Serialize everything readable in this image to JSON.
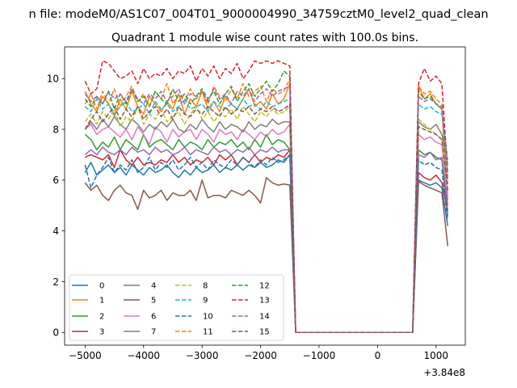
{
  "figure": {
    "suptitle": "n file: modeM0/AS1C07_004T01_9000004990_34759cztM0_level2_quad_clean",
    "offset_label": "+3.84e8"
  },
  "chart_data": {
    "type": "line",
    "title": "Quadrant 1 module wise count rates with 100.0s bins.",
    "xlabel": "",
    "ylabel": "",
    "xlim": [
      -5350,
      1500
    ],
    "ylim": [
      -0.5,
      11.25
    ],
    "x_offset": 384000000,
    "xticks": [
      -5000,
      -4000,
      -3000,
      -2000,
      -1000,
      0,
      1000
    ],
    "xtick_labels": [
      "−5000",
      "−4000",
      "−3000",
      "−2000",
      "−1000",
      "0",
      "1000"
    ],
    "yticks": [
      0,
      2,
      4,
      6,
      8,
      10
    ],
    "ytick_labels": [
      "0",
      "2",
      "4",
      "6",
      "8",
      "10"
    ],
    "grid": false,
    "legend_position": "lower-left",
    "legend_columns": 4,
    "x": [
      -5000,
      -4900,
      -4800,
      -4700,
      -4600,
      -4500,
      -4400,
      -4300,
      -4200,
      -4100,
      -4000,
      -3900,
      -3800,
      -3700,
      -3600,
      -3500,
      -3400,
      -3300,
      -3200,
      -3100,
      -3000,
      -2900,
      -2800,
      -2700,
      -2600,
      -2500,
      -2400,
      -2300,
      -2200,
      -2100,
      -2000,
      -1900,
      -1800,
      -1700,
      -1600,
      -1500,
      -1400,
      600,
      700,
      800,
      900,
      1000,
      1100,
      1200
    ],
    "series": [
      {
        "name": "0",
        "color": "#1f77b4",
        "dash": "solid",
        "values": [
          6.3,
          6.7,
          6.2,
          6.4,
          6.6,
          6.3,
          6.5,
          6.2,
          6.6,
          6.4,
          6.2,
          6.5,
          6.3,
          6.4,
          6.6,
          6.3,
          6.1,
          6.4,
          6.2,
          6.5,
          6.3,
          6.4,
          6.6,
          6.3,
          6.5,
          6.4,
          6.6,
          6.4,
          6.6,
          6.5,
          6.7,
          6.5,
          6.6,
          6.8,
          6.7,
          7.0,
          0.0,
          0.0,
          6.0,
          5.9,
          5.8,
          5.9,
          5.7,
          4.2
        ]
      },
      {
        "name": "1",
        "color": "#ff7f0e",
        "dash": "solid",
        "values": [
          9.5,
          9.0,
          8.7,
          9.3,
          9.0,
          8.5,
          9.2,
          8.8,
          9.5,
          8.9,
          8.6,
          9.3,
          9.0,
          8.7,
          9.1,
          8.8,
          9.4,
          8.6,
          9.2,
          8.9,
          9.5,
          8.8,
          9.1,
          8.7,
          9.3,
          9.0,
          8.8,
          9.2,
          9.6,
          8.9,
          9.1,
          8.8,
          9.4,
          9.0,
          9.2,
          9.8,
          0.0,
          0.0,
          9.7,
          9.2,
          9.4,
          9.0,
          8.8,
          5.2
        ]
      },
      {
        "name": "2",
        "color": "#2ca02c",
        "dash": "solid",
        "values": [
          7.8,
          7.6,
          7.2,
          7.5,
          7.3,
          7.7,
          7.2,
          7.6,
          7.4,
          7.2,
          7.8,
          7.3,
          7.5,
          7.6,
          7.4,
          7.2,
          7.6,
          7.3,
          7.5,
          7.4,
          7.2,
          7.6,
          7.3,
          7.5,
          7.4,
          7.6,
          7.3,
          7.5,
          7.2,
          7.6,
          7.3,
          7.8,
          7.4,
          7.6,
          7.5,
          7.2,
          0.0,
          0.0,
          7.2,
          7.0,
          7.1,
          6.9,
          6.8,
          4.6
        ]
      },
      {
        "name": "3",
        "color": "#d62728",
        "dash": "solid",
        "values": [
          6.9,
          7.0,
          6.9,
          6.8,
          7.0,
          6.5,
          7.2,
          6.8,
          6.6,
          6.9,
          6.6,
          6.7,
          6.6,
          6.8,
          6.7,
          7.0,
          6.7,
          6.9,
          6.6,
          6.8,
          6.7,
          6.9,
          6.6,
          7.0,
          6.8,
          7.0,
          6.6,
          6.9,
          6.7,
          7.0,
          6.7,
          6.9,
          6.8,
          7.0,
          6.9,
          7.2,
          0.0,
          0.0,
          6.3,
          6.1,
          6.0,
          6.2,
          5.9,
          4.8
        ]
      },
      {
        "name": "4",
        "color": "#9467bd",
        "dash": "solid",
        "values": [
          7.0,
          7.2,
          7.0,
          7.3,
          7.1,
          7.0,
          7.2,
          7.0,
          7.3,
          7.1,
          7.2,
          7.0,
          7.3,
          7.1,
          7.2,
          7.0,
          7.1,
          7.3,
          7.0,
          7.2,
          7.1,
          7.0,
          7.3,
          7.1,
          7.2,
          7.0,
          7.2,
          7.1,
          7.3,
          7.0,
          7.2,
          7.1,
          7.3,
          7.1,
          7.2,
          7.2,
          0.0,
          0.0,
          7.0,
          6.9,
          7.1,
          6.8,
          6.9,
          5.0
        ]
      },
      {
        "name": "5",
        "color": "#8c564b",
        "dash": "solid",
        "values": [
          5.9,
          5.6,
          5.8,
          5.4,
          5.2,
          5.6,
          5.8,
          5.5,
          5.4,
          4.85,
          5.6,
          5.3,
          5.4,
          5.6,
          5.2,
          5.5,
          5.4,
          5.4,
          5.6,
          5.2,
          6.0,
          5.3,
          5.4,
          5.4,
          5.3,
          5.6,
          5.5,
          5.4,
          5.6,
          5.4,
          5.1,
          6.1,
          5.9,
          5.8,
          5.85,
          5.8,
          0.0,
          0.0,
          5.95,
          5.8,
          5.7,
          5.6,
          5.5,
          3.4
        ]
      },
      {
        "name": "6",
        "color": "#e377c2",
        "dash": "solid",
        "values": [
          8.0,
          8.2,
          7.8,
          8.0,
          8.1,
          7.9,
          7.7,
          8.0,
          7.6,
          8.1,
          7.8,
          7.4,
          8.1,
          7.9,
          7.5,
          8.0,
          7.7,
          7.9,
          8.0,
          7.6,
          8.0,
          7.8,
          7.5,
          8.0,
          7.8,
          7.9,
          7.6,
          8.0,
          7.8,
          7.6,
          7.9,
          7.7,
          8.0,
          7.8,
          7.9,
          8.2,
          0.0,
          0.0,
          7.8,
          7.6,
          7.7,
          7.5,
          7.4,
          5.4
        ]
      },
      {
        "name": "7",
        "color": "#7f7f7f",
        "dash": "solid",
        "values": [
          8.0,
          8.3,
          8.0,
          8.4,
          8.1,
          8.5,
          8.2,
          8.0,
          8.4,
          8.2,
          7.9,
          8.2,
          8.0,
          8.3,
          8.1,
          8.4,
          8.0,
          7.9,
          8.2,
          8.0,
          8.4,
          8.1,
          7.9,
          8.3,
          8.0,
          8.2,
          8.1,
          7.9,
          8.3,
          8.0,
          8.2,
          8.1,
          8.4,
          8.2,
          8.3,
          8.3,
          0.0,
          0.0,
          8.3,
          8.1,
          8.0,
          8.2,
          7.8,
          6.6
        ]
      },
      {
        "name": "8",
        "color": "#bcbd22",
        "dash": "dashed",
        "values": [
          8.3,
          8.6,
          8.2,
          8.7,
          8.4,
          8.8,
          8.1,
          8.5,
          8.3,
          8.9,
          8.2,
          8.6,
          8.4,
          8.8,
          8.3,
          8.5,
          8.7,
          8.2,
          8.6,
          8.9,
          8.4,
          8.7,
          8.3,
          8.6,
          8.5,
          8.8,
          8.4,
          8.9,
          8.6,
          8.3,
          8.7,
          8.5,
          8.8,
          8.6,
          8.7,
          8.9,
          0.0,
          0.0,
          8.4,
          8.2,
          8.0,
          7.8,
          7.6,
          6.4
        ]
      },
      {
        "name": "9",
        "color": "#17becf",
        "dash": "dashed",
        "values": [
          8.9,
          8.7,
          9.2,
          8.8,
          9.0,
          8.6,
          8.9,
          9.1,
          8.7,
          8.8,
          9.0,
          8.6,
          9.1,
          8.8,
          9.0,
          8.7,
          8.9,
          9.2,
          8.8,
          8.9,
          9.0,
          8.7,
          9.1,
          8.9,
          8.8,
          9.0,
          8.8,
          9.2,
          8.9,
          9.0,
          8.8,
          9.1,
          8.9,
          9.0,
          9.1,
          9.2,
          0.0,
          0.0,
          9.0,
          8.8,
          8.9,
          8.7,
          8.6,
          6.8
        ]
      },
      {
        "name": "10",
        "color": "#1f77b4",
        "dash": "dashed",
        "values": [
          6.6,
          5.7,
          6.2,
          6.5,
          6.9,
          6.3,
          6.6,
          6.4,
          6.8,
          6.3,
          6.5,
          6.9,
          6.4,
          6.7,
          6.5,
          6.8,
          6.4,
          6.6,
          6.9,
          6.5,
          6.7,
          6.4,
          6.8,
          6.6,
          6.5,
          6.8,
          6.6,
          6.9,
          6.7,
          6.5,
          6.8,
          6.6,
          6.9,
          6.7,
          6.8,
          7.0,
          0.0,
          0.0,
          6.8,
          6.6,
          6.7,
          6.5,
          6.4,
          4.4
        ]
      },
      {
        "name": "11",
        "color": "#ff7f0e",
        "dash": "dashed",
        "values": [
          9.0,
          9.4,
          8.8,
          9.5,
          9.0,
          9.6,
          8.9,
          9.3,
          9.7,
          9.1,
          9.4,
          8.9,
          9.5,
          9.2,
          9.8,
          9.0,
          9.4,
          9.1,
          9.6,
          9.2,
          9.5,
          9.0,
          9.7,
          9.3,
          9.1,
          9.6,
          9.2,
          9.8,
          9.3,
          9.5,
          9.7,
          9.1,
          9.6,
          9.4,
          9.5,
          10.0,
          0.0,
          0.0,
          9.7,
          9.4,
          9.5,
          9.2,
          9.0,
          5.8
        ]
      },
      {
        "name": "12",
        "color": "#2ca02c",
        "dash": "dashed",
        "values": [
          9.2,
          8.9,
          9.3,
          9.0,
          9.5,
          8.8,
          9.4,
          9.0,
          9.6,
          9.1,
          9.3,
          8.9,
          9.5,
          9.2,
          9.0,
          9.6,
          9.1,
          9.4,
          9.0,
          9.3,
          9.6,
          9.2,
          9.5,
          9.0,
          9.4,
          9.7,
          9.1,
          9.5,
          9.8,
          9.3,
          9.6,
          9.9,
          9.5,
          9.8,
          10.3,
          10.1,
          0.0,
          0.0,
          9.5,
          9.2,
          9.3,
          9.0,
          8.8,
          6.0
        ]
      },
      {
        "name": "13",
        "color": "#d62728",
        "dash": "dashed",
        "values": [
          9.9,
          9.4,
          9.6,
          10.7,
          10.6,
          10.3,
          10.0,
          10.1,
          10.3,
          9.8,
          10.4,
          10.0,
          10.2,
          10.1,
          10.4,
          10.0,
          10.3,
          10.2,
          10.5,
          9.9,
          10.4,
          10.1,
          10.5,
          10.0,
          10.4,
          10.2,
          10.6,
          10.0,
          10.3,
          10.7,
          10.6,
          10.7,
          10.6,
          10.7,
          10.6,
          10.5,
          0.0,
          0.0,
          9.8,
          10.4,
          9.9,
          10.1,
          9.8,
          6.2
        ]
      },
      {
        "name": "14",
        "color": "#9467bd",
        "dash": "dashed",
        "values": [
          9.4,
          9.1,
          9.3,
          9.0,
          9.5,
          9.2,
          9.4,
          9.1,
          9.6,
          9.2,
          9.0,
          9.4,
          9.2,
          9.5,
          9.1,
          9.3,
          9.6,
          9.0,
          9.4,
          9.3,
          9.5,
          9.1,
          9.6,
          9.2,
          9.4,
          9.0,
          9.5,
          9.3,
          9.6,
          9.1,
          9.4,
          9.6,
          9.3,
          9.5,
          9.6,
          9.7,
          0.0,
          0.0,
          9.3,
          9.1,
          9.2,
          9.0,
          8.9,
          6.2
        ]
      },
      {
        "name": "15",
        "color": "#8c564b",
        "dash": "dashed",
        "values": [
          8.0,
          8.4,
          8.7,
          8.3,
          8.6,
          8.9,
          8.4,
          8.8,
          8.5,
          8.9,
          8.4,
          8.7,
          8.9,
          8.5,
          8.8,
          8.4,
          8.9,
          8.6,
          8.5,
          8.8,
          8.6,
          8.9,
          8.7,
          8.5,
          8.9,
          8.6,
          8.8,
          8.7,
          8.9,
          8.6,
          8.8,
          8.7,
          8.9,
          8.7,
          8.8,
          9.0,
          0.0,
          0.0,
          8.1,
          8.0,
          7.9,
          7.8,
          7.6,
          5.6
        ]
      }
    ]
  }
}
